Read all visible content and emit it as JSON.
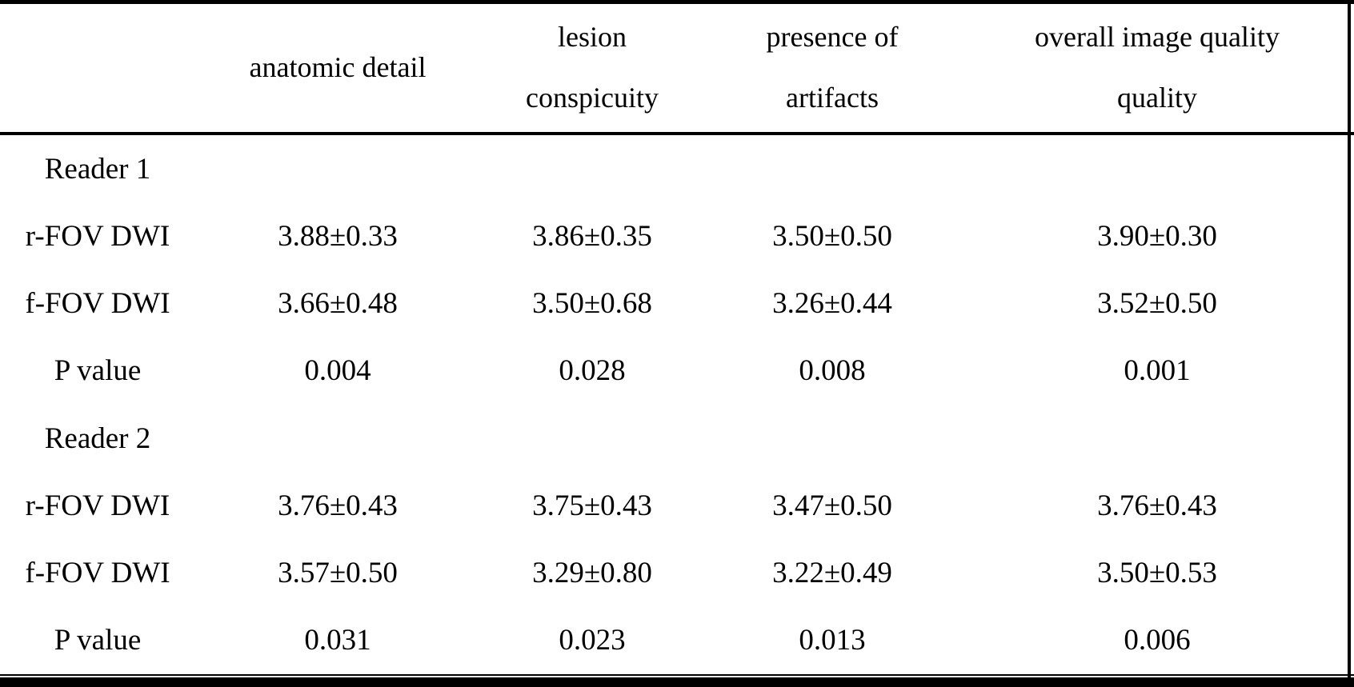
{
  "table": {
    "headers": [
      "",
      "anatomic detail",
      "lesion\nconspicuity",
      "presence of\nartifacts",
      "overall image quality\nquality"
    ],
    "rows": [
      {
        "label": "Reader 1",
        "values": [
          "",
          "",
          "",
          ""
        ]
      },
      {
        "label": "r-FOV DWI",
        "values": [
          "3.88±0.33",
          "3.86±0.35",
          "3.50±0.50",
          "3.90±0.30"
        ]
      },
      {
        "label": "f-FOV DWI",
        "values": [
          "3.66±0.48",
          "3.50±0.68",
          "3.26±0.44",
          "3.52±0.50"
        ]
      },
      {
        "label": "P value",
        "values": [
          "0.004",
          "0.028",
          "0.008",
          "0.001"
        ]
      },
      {
        "label": "Reader 2",
        "values": [
          "",
          "",
          "",
          ""
        ]
      },
      {
        "label": "r-FOV DWI",
        "values": [
          "3.76±0.43",
          "3.75±0.43",
          "3.47±0.50",
          "3.76±0.43"
        ]
      },
      {
        "label": "f-FOV DWI",
        "values": [
          "3.57±0.50",
          "3.29±0.80",
          "3.22±0.49",
          "3.50±0.53"
        ]
      },
      {
        "label": "P value",
        "values": [
          "0.031",
          "0.023",
          "0.013",
          "0.006"
        ]
      }
    ]
  },
  "colors": {
    "text": "#000000",
    "background": "#ffffff",
    "rule": "#000000"
  },
  "chart_data": {
    "type": "table",
    "title": "Qualitative image quality scores: r-FOV DWI vs f-FOV DWI",
    "columns": [
      "",
      "anatomic detail",
      "lesion conspicuity",
      "presence of artifacts",
      "overall image quality quality"
    ],
    "sections": [
      {
        "group": "Reader 1",
        "rows": [
          {
            "label": "r-FOV DWI",
            "anatomic_detail": "3.88±0.33",
            "lesion_conspicuity": "3.86±0.35",
            "presence_of_artifacts": "3.50±0.50",
            "overall_image_quality": "3.90±0.30"
          },
          {
            "label": "f-FOV DWI",
            "anatomic_detail": "3.66±0.48",
            "lesion_conspicuity": "3.50±0.68",
            "presence_of_artifacts": "3.26±0.44",
            "overall_image_quality": "3.52±0.50"
          },
          {
            "label": "P value",
            "anatomic_detail": 0.004,
            "lesion_conspicuity": 0.028,
            "presence_of_artifacts": 0.008,
            "overall_image_quality": 0.001
          }
        ]
      },
      {
        "group": "Reader 2",
        "rows": [
          {
            "label": "r-FOV DWI",
            "anatomic_detail": "3.76±0.43",
            "lesion_conspicuity": "3.75±0.43",
            "presence_of_artifacts": "3.47±0.50",
            "overall_image_quality": "3.76±0.43"
          },
          {
            "label": "f-FOV DWI",
            "anatomic_detail": "3.57±0.50",
            "lesion_conspicuity": "3.29±0.80",
            "presence_of_artifacts": "3.22±0.49",
            "overall_image_quality": "3.50±0.53"
          },
          {
            "label": "P value",
            "anatomic_detail": 0.031,
            "lesion_conspicuity": 0.023,
            "presence_of_artifacts": 0.013,
            "overall_image_quality": 0.006
          }
        ]
      }
    ]
  }
}
